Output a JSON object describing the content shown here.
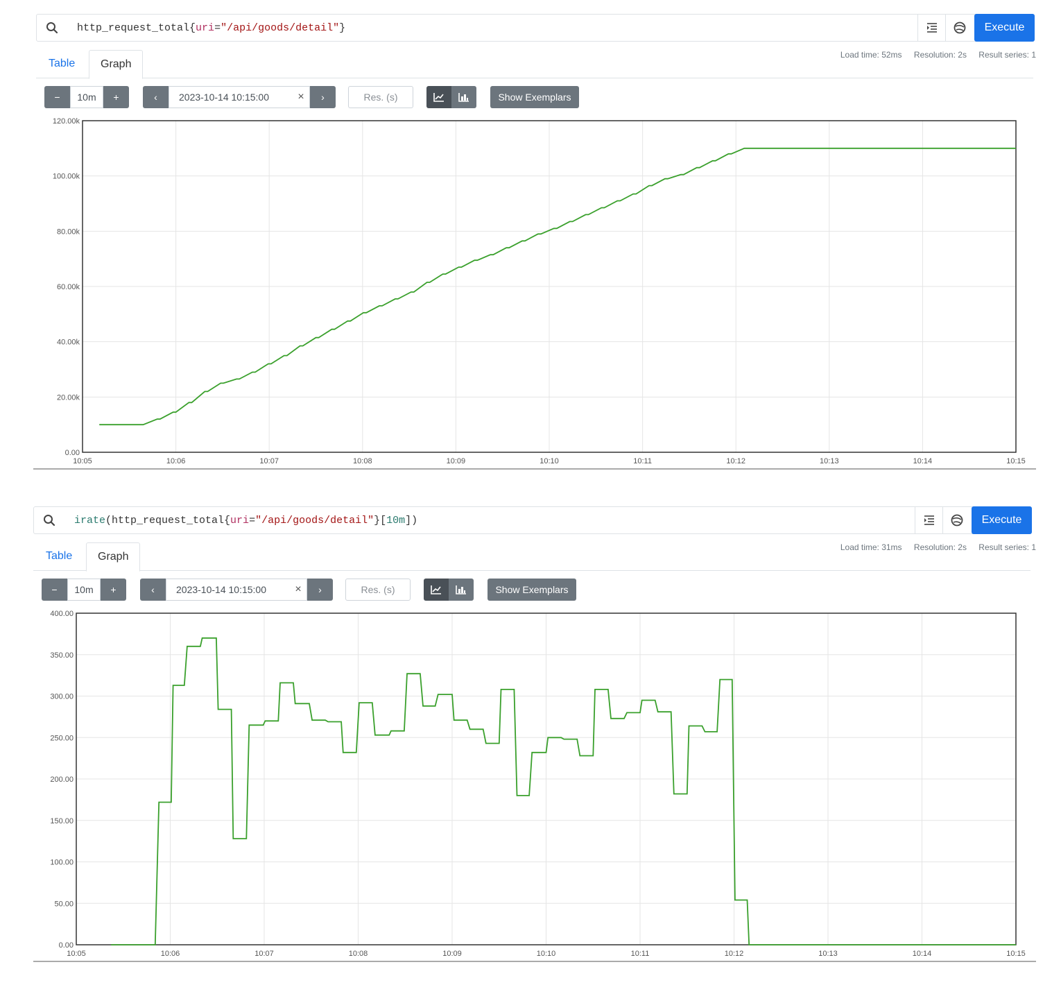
{
  "panels": [
    {
      "expression": {
        "parts": [
          {
            "text": "http_request_total",
            "kind": "metric"
          },
          {
            "text": "{",
            "kind": "plain"
          },
          {
            "text": "uri",
            "kind": "lbl"
          },
          {
            "text": "=",
            "kind": "plain"
          },
          {
            "text": "\"/api/goods/detail\"",
            "kind": "str"
          },
          {
            "text": "}",
            "kind": "plain"
          }
        ]
      },
      "execute_label": "Execute",
      "meta": {
        "load_time": "Load time: 52ms",
        "resolution": "Resolution: 2s",
        "result_series": "Result series: 1"
      },
      "tabs": {
        "table": "Table",
        "graph": "Graph"
      },
      "controls": {
        "minus": "−",
        "range": "10m",
        "plus": "+",
        "prev": "‹",
        "end_time": "2023-10-14 10:15:00",
        "clear": "×",
        "next": "›",
        "resolution_placeholder": "Res. (s)",
        "exemplars": "Show Exemplars"
      },
      "chart_data": {
        "type": "line",
        "series_color": "#3aa02c",
        "ylim": [
          0,
          120000
        ],
        "y_ticks": [
          "0.00",
          "20.00k",
          "40.00k",
          "60.00k",
          "80.00k",
          "100.00k",
          "120.00k"
        ],
        "x_ticks": [
          "10:05",
          "10:06",
          "10:07",
          "10:08",
          "10:09",
          "10:10",
          "10:11",
          "10:12",
          "10:13",
          "10:14",
          "10:15"
        ],
        "xlim_minutes": [
          5,
          15
        ],
        "step_shape": true,
        "series": [
          {
            "x_minutes": [
              5.18,
              5.32,
              5.5,
              5.65,
              5.8,
              5.83,
              5.97,
              6.0,
              6.14,
              6.17,
              6.31,
              6.34,
              6.48,
              6.51,
              6.65,
              6.68,
              6.82,
              6.85,
              6.99,
              7.02,
              7.16,
              7.19,
              7.33,
              7.36,
              7.5,
              7.53,
              7.67,
              7.7,
              7.84,
              7.87,
              8.01,
              8.04,
              8.18,
              8.21,
              8.35,
              8.38,
              8.52,
              8.55,
              8.69,
              8.72,
              8.86,
              8.89,
              9.03,
              9.06,
              9.2,
              9.23,
              9.37,
              9.4,
              9.54,
              9.57,
              9.71,
              9.74,
              9.88,
              9.91,
              10.05,
              10.08,
              10.22,
              10.25,
              10.39,
              10.42,
              10.56,
              10.59,
              10.73,
              10.76,
              10.9,
              10.93,
              11.07,
              11.1,
              11.24,
              11.27,
              11.41,
              11.44,
              11.58,
              11.61,
              11.75,
              11.78,
              11.92,
              11.95,
              12.09,
              13.0,
              14.0,
              15.0
            ],
            "values": [
              10000,
              10000,
              10000,
              10000,
              12000,
              12000,
              14500,
              14500,
              18000,
              18000,
              22000,
              22000,
              25000,
              25000,
              26500,
              26500,
              29000,
              29000,
              32000,
              32000,
              35000,
              35000,
              38500,
              38500,
              41500,
              41500,
              44500,
              44500,
              47500,
              47500,
              50500,
              50500,
              53000,
              53000,
              55500,
              55500,
              58000,
              58000,
              61500,
              61500,
              64500,
              64500,
              67000,
              67000,
              69500,
              69500,
              71500,
              71500,
              74000,
              74000,
              76500,
              76500,
              79000,
              79000,
              81000,
              81000,
              83500,
              83500,
              86000,
              86000,
              88500,
              88500,
              91000,
              91000,
              93500,
              93500,
              96500,
              96500,
              99000,
              99000,
              100500,
              100500,
              103000,
              103000,
              105500,
              105500,
              108000,
              108000,
              110000,
              110000,
              110000,
              110000
            ]
          }
        ]
      }
    },
    {
      "expression": {
        "parts": [
          {
            "text": "irate",
            "kind": "fn"
          },
          {
            "text": "(http_request_total{",
            "kind": "plain"
          },
          {
            "text": "uri",
            "kind": "lbl"
          },
          {
            "text": "=",
            "kind": "plain"
          },
          {
            "text": "\"/api/goods/detail\"",
            "kind": "str"
          },
          {
            "text": "}[",
            "kind": "plain"
          },
          {
            "text": "10m",
            "kind": "num"
          },
          {
            "text": "])",
            "kind": "plain"
          }
        ]
      },
      "execute_label": "Execute",
      "meta": {
        "load_time": "Load time: 31ms",
        "resolution": "Resolution: 2s",
        "result_series": "Result series: 1"
      },
      "tabs": {
        "table": "Table",
        "graph": "Graph"
      },
      "controls": {
        "minus": "−",
        "range": "10m",
        "plus": "+",
        "prev": "‹",
        "end_time": "2023-10-14 10:15:00",
        "clear": "×",
        "next": "›",
        "resolution_placeholder": "Res. (s)",
        "exemplars": "Show Exemplars"
      },
      "chart_data": {
        "type": "line",
        "series_color": "#3aa02c",
        "ylim": [
          0,
          400
        ],
        "y_ticks": [
          "0.00",
          "50.00",
          "100.00",
          "150.00",
          "200.00",
          "250.00",
          "300.00",
          "350.00",
          "400.00"
        ],
        "x_ticks": [
          "10:05",
          "10:06",
          "10:07",
          "10:08",
          "10:09",
          "10:10",
          "10:11",
          "10:12",
          "10:13",
          "10:14",
          "10:15"
        ],
        "xlim_minutes": [
          5,
          15
        ],
        "step_shape": false,
        "series": [
          {
            "x_minutes": [
              5.37,
              5.84,
              5.88,
              6.01,
              6.03,
              6.15,
              6.18,
              6.32,
              6.34,
              6.49,
              6.51,
              6.65,
              6.67,
              6.81,
              6.84,
              6.99,
              7.01,
              7.15,
              7.17,
              7.31,
              7.33,
              7.48,
              7.51,
              7.65,
              7.68,
              7.82,
              7.84,
              7.98,
              8.01,
              8.15,
              8.18,
              8.33,
              8.35,
              8.49,
              8.52,
              8.66,
              8.69,
              8.82,
              8.85,
              9.0,
              9.02,
              9.16,
              9.19,
              9.33,
              9.36,
              9.5,
              9.52,
              9.66,
              9.69,
              9.82,
              9.85,
              10.0,
              10.02,
              10.16,
              10.19,
              10.33,
              10.36,
              10.5,
              10.52,
              10.66,
              10.69,
              10.83,
              10.86,
              11.0,
              11.02,
              11.16,
              11.19,
              11.33,
              11.36,
              11.5,
              11.52,
              11.66,
              11.69,
              11.82,
              11.85,
              11.98,
              12.01,
              12.14,
              12.16,
              13.0,
              14.0,
              15.0
            ],
            "values": [
              0,
              0,
              172,
              172,
              313,
              313,
              360,
              360,
              370,
              370,
              284,
              284,
              128,
              128,
              265,
              265,
              270,
              270,
              316,
              316,
              291,
              291,
              271,
              271,
              269,
              269,
              232,
              232,
              292,
              292,
              253,
              253,
              258,
              258,
              327,
              327,
              288,
              288,
              302,
              302,
              271,
              271,
              260,
              260,
              243,
              243,
              308,
              308,
              180,
              180,
              232,
              232,
              250,
              250,
              248,
              248,
              228,
              228,
              308,
              308,
              273,
              273,
              280,
              280,
              295,
              295,
              281,
              281,
              182,
              182,
              264,
              264,
              257,
              257,
              320,
              320,
              54,
              54,
              0,
              0,
              0,
              0
            ]
          }
        ]
      }
    }
  ]
}
